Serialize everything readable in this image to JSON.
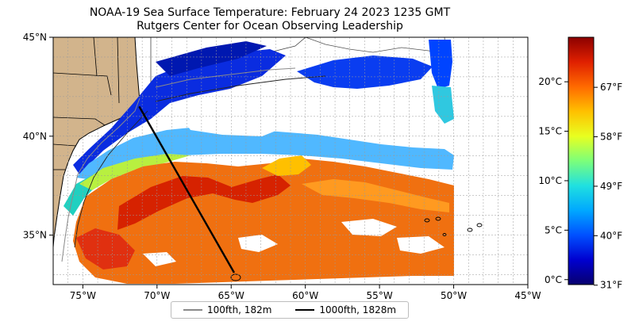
{
  "title": "NOAA-19 Sea Surface Temperature: February 24 2023 1235 GMT",
  "subtitle": "Rutgers Center for Ocean Observing Leadership",
  "map": {
    "lon_range": [
      -77,
      -45
    ],
    "lat_range": [
      32.5,
      45
    ],
    "lon_ticks": [
      "75°W",
      "70°W",
      "65°W",
      "60°W",
      "55°W",
      "50°W",
      "45°W"
    ],
    "lat_ticks": [
      "45°N",
      "40°N",
      "35°N"
    ],
    "grid": true,
    "land_color": "#d2b48c",
    "transect": {
      "from_lon": -71.2,
      "from_lat": 41.5,
      "to_lon": -64.8,
      "to_lat": 33.1
    }
  },
  "colorbar": {
    "min_c": -0.5,
    "max_c": 24.5,
    "celsius_ticks": [
      {
        "v": 0,
        "label": "0°C"
      },
      {
        "v": 5,
        "label": "5°C"
      },
      {
        "v": 10,
        "label": "10°C"
      },
      {
        "v": 15,
        "label": "15°C"
      },
      {
        "v": 20,
        "label": "20°C"
      }
    ],
    "fahrenheit_ticks": [
      {
        "v": -0.56,
        "label": "31°F"
      },
      {
        "v": 4.44,
        "label": "40°F"
      },
      {
        "v": 9.44,
        "label": "49°F"
      },
      {
        "v": 14.44,
        "label": "58°F"
      },
      {
        "v": 19.44,
        "label": "67°F"
      }
    ],
    "stops": [
      "#08006e",
      "#0000d0",
      "#0050ff",
      "#00a8ff",
      "#20e0e0",
      "#7cff7a",
      "#e8ff20",
      "#ffc000",
      "#ff6a00",
      "#e02000",
      "#8c0000"
    ]
  },
  "legend": [
    {
      "label": "100fth, 182m",
      "color": "#8a8a8a"
    },
    {
      "label": "1000fth, 1828m",
      "color": "#000000"
    }
  ]
}
